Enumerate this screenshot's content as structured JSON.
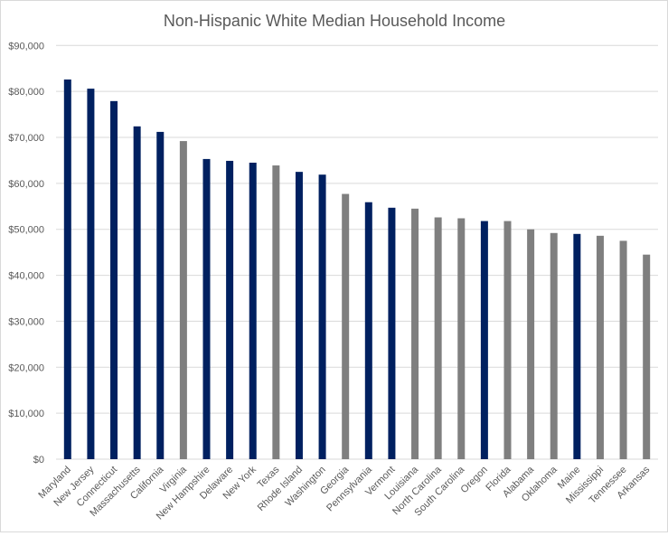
{
  "chart_data": {
    "type": "bar",
    "title": "Non-Hispanic White Median Household Income",
    "xlabel": "",
    "ylabel": "",
    "ylim": [
      0,
      90000
    ],
    "yticks": [
      0,
      10000,
      20000,
      30000,
      40000,
      50000,
      60000,
      70000,
      80000,
      90000
    ],
    "ytick_labels": [
      "$0",
      "$10,000",
      "$20,000",
      "$30,000",
      "$40,000",
      "$50,000",
      "$60,000",
      "$70,000",
      "$80,000",
      "$90,000"
    ],
    "grid": true,
    "categories": [
      "Maryland",
      "New Jersey",
      "Connecticut",
      "Massachusetts",
      "California",
      "Virginia",
      "New Hampshire",
      "Delaware",
      "New York",
      "Texas",
      "Rhode Island",
      "Washington",
      "Georgia",
      "Pennsylvania",
      "Vermont",
      "Louisiana",
      "North Carolina",
      "South Carolina",
      "Oregon",
      "Florida",
      "Alabama",
      "Oklahoma",
      "Maine",
      "Mississippi",
      "Tennessee",
      "Arkansas"
    ],
    "values": [
      82600,
      80600,
      77900,
      72400,
      71200,
      69200,
      65300,
      64900,
      64500,
      63900,
      62500,
      61900,
      57700,
      55900,
      54700,
      54500,
      52600,
      52400,
      51800,
      51800,
      50000,
      49200,
      49000,
      48600,
      47500,
      44500
    ],
    "groups": [
      "blue",
      "blue",
      "blue",
      "blue",
      "blue",
      "gray",
      "blue",
      "blue",
      "blue",
      "gray",
      "blue",
      "blue",
      "gray",
      "blue",
      "blue",
      "gray",
      "gray",
      "gray",
      "blue",
      "gray",
      "gray",
      "gray",
      "blue",
      "gray",
      "gray",
      "gray"
    ],
    "colors": {
      "blue": "#002060",
      "gray": "#7f7f7f"
    }
  }
}
